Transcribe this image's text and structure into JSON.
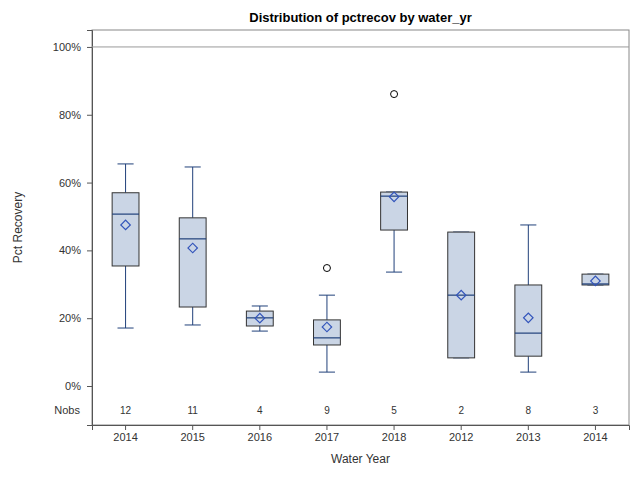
{
  "chart_data": {
    "type": "box",
    "title": "Distribution of pctrecov by water_yr",
    "x_label": "Water Year",
    "y_label": "Pct Recovery",
    "categories": [
      "2014",
      "2015",
      "2016",
      "2017",
      "2018",
      "2012",
      "2013",
      "2014"
    ],
    "stats": {
      "min": [
        17.1,
        18,
        16.2,
        4.1,
        33.6,
        8.3,
        4.1,
        29.8
      ],
      "q1": [
        35.4,
        23.3,
        17.7,
        12.1,
        46,
        8.3,
        8.8,
        29.8
      ],
      "median": [
        50.7,
        43.4,
        20.1,
        14.2,
        56,
        26.8,
        15.6,
        30.1
      ],
      "q3": [
        57,
        49.6,
        22.1,
        19.5,
        57.2,
        45.4,
        29.8,
        33
      ],
      "max": [
        65.5,
        64.6,
        23.6,
        26.8,
        57.2,
        45.4,
        47.5,
        33
      ],
      "mean": [
        47.5,
        40.7,
        20,
        17.4,
        55.8,
        26.8,
        20.1,
        31
      ],
      "outliers": [
        [],
        [],
        [],
        [
          34.8
        ],
        [
          86.1
        ],
        [],
        [],
        []
      ]
    },
    "nobs_label": "Nobs",
    "nobs": [
      12,
      11,
      4,
      9,
      5,
      2,
      8,
      3
    ],
    "ylim": [
      -11.5,
      105
    ],
    "yticks": [
      {
        "value": 0,
        "label": "0%"
      },
      {
        "value": 20,
        "label": "20%"
      },
      {
        "value": 40,
        "label": "40%"
      },
      {
        "value": 60,
        "label": "60%"
      },
      {
        "value": 80,
        "label": "80%"
      },
      {
        "value": 100,
        "label": "100%"
      }
    ],
    "refline": 100,
    "color": "#cad5e5",
    "marker": "diamond",
    "grid": false
  }
}
